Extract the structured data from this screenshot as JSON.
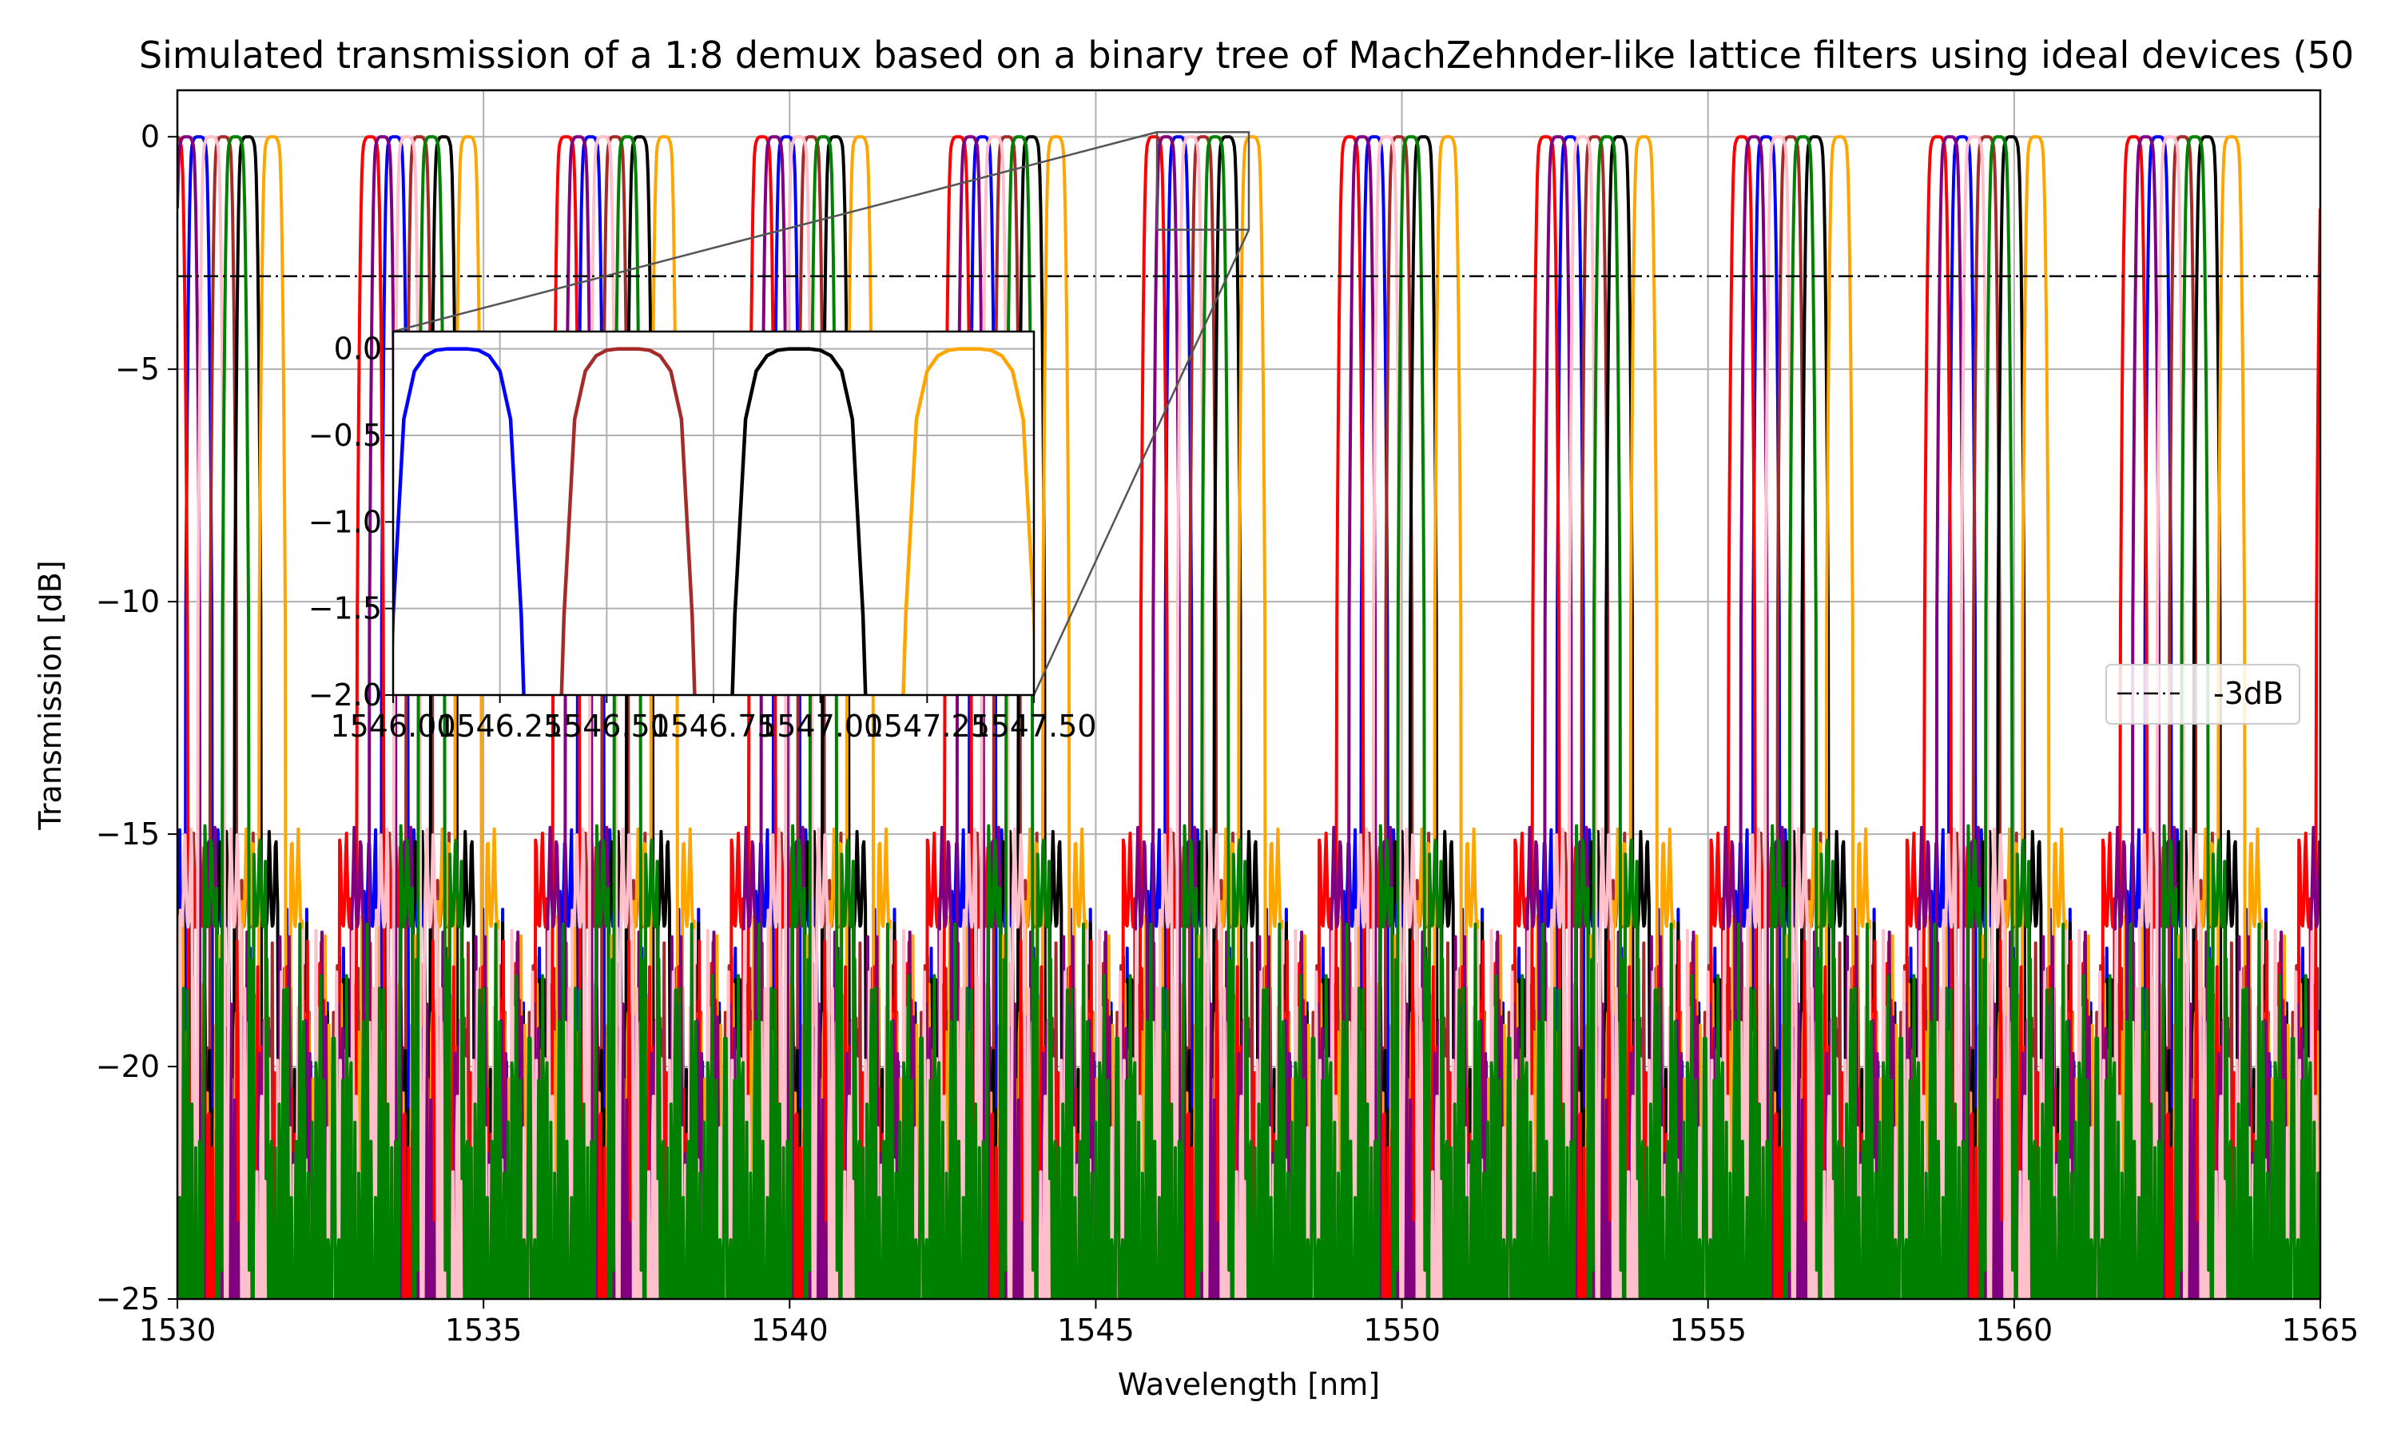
{
  "chart_data": {
    "type": "line",
    "title": "Simulated transmission of a 1:8 demux based on a binary tree of MachZehnder-like lattice filters using ideal devices (50",
    "xlabel": "Wavelength [nm]",
    "ylabel": "Transmission [dB]",
    "xlim": [
      1530,
      1565
    ],
    "ylim": [
      -25,
      1
    ],
    "xticks": [
      1530,
      1535,
      1540,
      1545,
      1550,
      1555,
      1560,
      1565
    ],
    "xtick_labels": [
      "1530",
      "1535",
      "1540",
      "1545",
      "1550",
      "1555",
      "1560",
      "1565"
    ],
    "yticks": [
      0,
      -5,
      -10,
      -15,
      -20,
      -25
    ],
    "ytick_labels": [
      "0",
      "−5",
      "−10",
      "−15",
      "−20",
      "−25"
    ],
    "grid": true,
    "channel_spacing_nm": 0.4,
    "peak_db": 0,
    "channel_colors": [
      "#ff0000",
      "#800080",
      "#a52a2a",
      "#0000ff",
      "#ffc0cb",
      "#008000",
      "#000000",
      "#ffa500"
    ],
    "series": [
      {
        "name": "",
        "color": "#0000ff",
        "first_peak_nm": 1530.35
      },
      {
        "name": "",
        "color": "#a52a2a",
        "first_peak_nm": 1530.75
      },
      {
        "name": "",
        "color": "#000000",
        "first_peak_nm": 1531.15
      },
      {
        "name": "",
        "color": "#ffa500",
        "first_peak_nm": 1531.55
      },
      {
        "name": "",
        "color": "#ff0000",
        "first_peak_nm": 1529.95
      },
      {
        "name": "",
        "color": "#800080",
        "first_peak_nm": 1530.15
      },
      {
        "name": "",
        "color": "#ffc0cb",
        "first_peak_nm": 1530.55
      },
      {
        "name": "",
        "color": "#008000",
        "first_peak_nm": 1530.95
      }
    ],
    "reference_line": {
      "y": -3,
      "label": "-3dB",
      "style": "dash-dot",
      "color": "#000000"
    },
    "legend": {
      "placement": "right",
      "entries": [
        "-3dB"
      ]
    },
    "inset": {
      "xlim": [
        1546.0,
        1547.5
      ],
      "ylim": [
        -2.0,
        0.1
      ],
      "xticks": [
        1546.0,
        1546.25,
        1546.5,
        1546.75,
        1547.0,
        1547.25,
        1547.5
      ],
      "xtick_labels": [
        "1546.00",
        "1546.25",
        "1546.50",
        "1546.75",
        "1547.00",
        "1547.25",
        "1547.50"
      ],
      "yticks": [
        0.0,
        -0.5,
        -1.0,
        -1.5,
        -2.0
      ],
      "ytick_labels": [
        "0.0",
        "−0.5",
        "−1.0",
        "−1.5",
        "−2.0"
      ],
      "peaks": [
        {
          "color": "#0000ff",
          "center_nm": 1546.15
        },
        {
          "color": "#a52a2a",
          "center_nm": 1546.55
        },
        {
          "color": "#000000",
          "center_nm": 1546.95
        },
        {
          "color": "#ffa500",
          "center_nm": 1547.35
        }
      ]
    }
  }
}
